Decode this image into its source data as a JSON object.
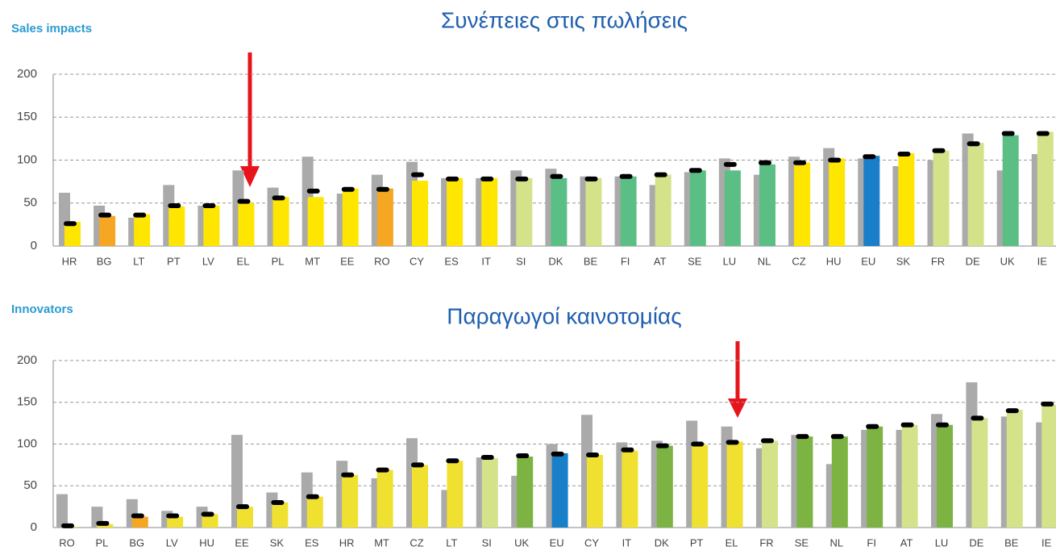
{
  "chart_data": [
    {
      "type": "bar",
      "title": "Sales impacts",
      "subtitle": "Συνέπειες στις πωλήσεις",
      "categories": [
        "HR",
        "BG",
        "LT",
        "PT",
        "LV",
        "EL",
        "PL",
        "MT",
        "EE",
        "RO",
        "CY",
        "ES",
        "IT",
        "SI",
        "DK",
        "BE",
        "FI",
        "AT",
        "SE",
        "LU",
        "NL",
        "CZ",
        "HU",
        "EU",
        "SK",
        "FR",
        "DE",
        "UK",
        "IE"
      ],
      "series": [
        {
          "color": "#aaaaaa",
          "values": [
            62,
            47,
            33,
            71,
            47,
            88,
            68,
            104,
            61,
            83,
            98,
            79,
            79,
            88,
            90,
            81,
            81,
            71,
            86,
            102,
            83,
            104,
            114,
            102,
            93,
            100,
            131,
            88,
            107
          ]
        },
        {
          "colors": [
            "#ffe600",
            "#f5a623",
            "#ffe600",
            "#ffe600",
            "#ffe600",
            "#ffe600",
            "#ffe600",
            "#ffe600",
            "#ffe600",
            "#f5a623",
            "#ffe600",
            "#ffe600",
            "#ffe600",
            "#d4e38a",
            "#5bbf85",
            "#d4e38a",
            "#5bbf85",
            "#d4e38a",
            "#5bbf85",
            "#5bbf85",
            "#5bbf85",
            "#ffe600",
            "#ffe600",
            "#1a7fc9",
            "#ffe600",
            "#d4e38a",
            "#d4e38a",
            "#5bbf85",
            "#d4e38a"
          ],
          "values": [
            28,
            35,
            37,
            46,
            47,
            50,
            57,
            57,
            67,
            67,
            76,
            79,
            79,
            79,
            79,
            79,
            81,
            83,
            88,
            88,
            95,
            97,
            102,
            105,
            108,
            111,
            120,
            129,
            133
          ]
        },
        {
          "color": "#000000",
          "values": [
            26,
            36,
            36,
            47,
            47,
            52,
            56,
            64,
            66,
            66,
            83,
            78,
            78,
            78,
            81,
            78,
            81,
            83,
            88,
            95,
            97,
            97,
            100,
            104,
            107,
            111,
            119,
            131,
            131
          ]
        }
      ],
      "ylim": [
        0,
        200
      ],
      "yticks": [
        0,
        50,
        100,
        150,
        200
      ],
      "grid": true
    },
    {
      "type": "bar",
      "title": "Innovators",
      "subtitle": "Παραγωγοί καινοτομίας",
      "categories": [
        "RO",
        "PL",
        "BG",
        "LV",
        "HU",
        "EE",
        "SK",
        "ES",
        "HR",
        "MT",
        "CZ",
        "LT",
        "SI",
        "UK",
        "EU",
        "CY",
        "IT",
        "DK",
        "PT",
        "EL",
        "FR",
        "SE",
        "NL",
        "FI",
        "AT",
        "LU",
        "DE",
        "BE",
        "IE"
      ],
      "series": [
        {
          "color": "#aaaaaa",
          "values": [
            40,
            25,
            34,
            20,
            25,
            111,
            42,
            66,
            80,
            59,
            107,
            45,
            84,
            62,
            100,
            135,
            102,
            104,
            128,
            121,
            95,
            111,
            76,
            117,
            117,
            136,
            174,
            133,
            126
          ]
        },
        {
          "colors": [
            "#f0e130",
            "#f0e130",
            "#f5a623",
            "#f0e130",
            "#f0e130",
            "#f0e130",
            "#f0e130",
            "#f0e130",
            "#f0e130",
            "#f0e130",
            "#f0e130",
            "#f0e130",
            "#d4e38a",
            "#7cb342",
            "#1a7fc9",
            "#f0e130",
            "#f0e130",
            "#7cb342",
            "#f0e130",
            "#f0e130",
            "#d4e38a",
            "#7cb342",
            "#7cb342",
            "#7cb342",
            "#d4e38a",
            "#7cb342",
            "#d4e38a",
            "#d4e38a",
            "#d4e38a"
          ],
          "values": [
            1,
            4,
            13,
            13,
            16,
            25,
            30,
            37,
            63,
            69,
            75,
            80,
            83,
            85,
            89,
            87,
            92,
            98,
            99,
            103,
            104,
            109,
            109,
            121,
            123,
            123,
            131,
            141,
            147
          ]
        },
        {
          "color": "#000000",
          "values": [
            2,
            5,
            14,
            14,
            16,
            25,
            30,
            37,
            63,
            69,
            75,
            80,
            84,
            86,
            88,
            87,
            93,
            98,
            100,
            102,
            104,
            109,
            109,
            121,
            123,
            123,
            131,
            140,
            148
          ]
        }
      ],
      "ylim": [
        0,
        200
      ],
      "yticks": [
        0,
        50,
        100,
        150,
        200
      ],
      "grid": true
    }
  ]
}
